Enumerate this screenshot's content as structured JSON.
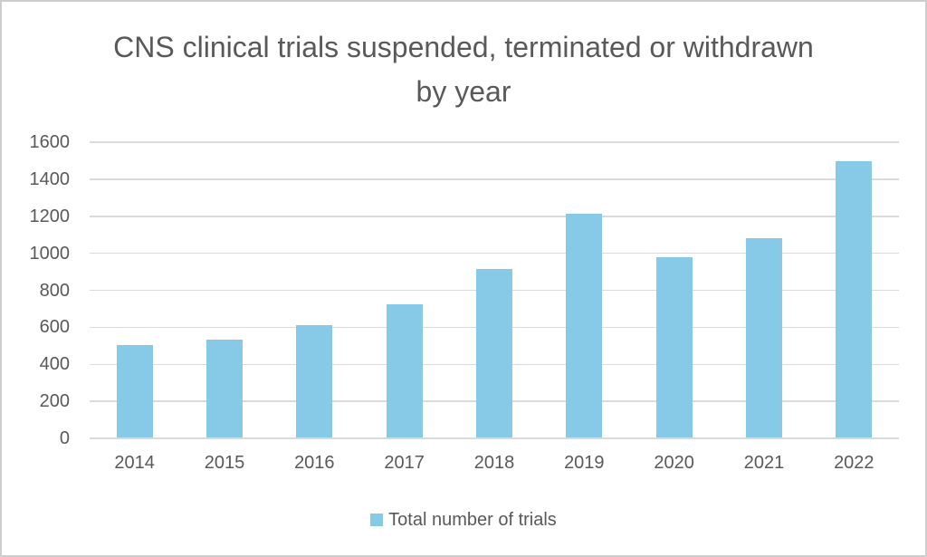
{
  "chart_data": {
    "type": "bar",
    "title": "CNS clinical trials suspended, terminated or withdrawn by year",
    "categories": [
      "2014",
      "2015",
      "2016",
      "2017",
      "2018",
      "2019",
      "2020",
      "2021",
      "2022"
    ],
    "series": [
      {
        "name": "Total number of trials",
        "values": [
          500,
          530,
          605,
          720,
          910,
          1210,
          975,
          1075,
          1490
        ]
      }
    ],
    "xlabel": "",
    "ylabel": "",
    "ylim": [
      0,
      1600
    ],
    "yticks": [
      0,
      200,
      400,
      600,
      800,
      1000,
      1200,
      1400,
      1600
    ],
    "grid": "horizontal",
    "legend_position": "bottom"
  },
  "legend": {
    "label": "Total number of trials"
  },
  "colors": {
    "bar": "#87cae8",
    "text": "#595959",
    "gridline": "#dadada",
    "axis_line": "#d6d6d6",
    "frame_border": "#cdcdcd",
    "background": "#ffffff"
  }
}
